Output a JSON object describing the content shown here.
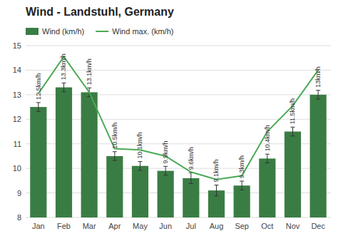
{
  "chart_data": {
    "type": "bar",
    "title": "Wind - Landstuhl, Germany",
    "categories": [
      "Jan",
      "Feb",
      "Mar",
      "Apr",
      "May",
      "Jun",
      "Jul",
      "Aug",
      "Sep",
      "Oct",
      "Nov",
      "Dec"
    ],
    "series": [
      {
        "name": "Wind (km/h)",
        "type": "bar",
        "color": "#3a7d44",
        "values": [
          12.5,
          13.3,
          13.1,
          10.5,
          10.1,
          9.9,
          9.6,
          9.1,
          9.3,
          10.4,
          11.5,
          13.0
        ],
        "errors": [
          0.18,
          0.18,
          0.18,
          0.18,
          0.18,
          0.18,
          0.22,
          0.22,
          0.18,
          0.18,
          0.18,
          0.18
        ],
        "data_labels": true,
        "value_labels": [
          "12.5km/h",
          "13.3km/h",
          "13.1km/h",
          "10.5km/h",
          "10.1km/h",
          "9.9km/h",
          "9.6km/h",
          "9.1km/h",
          "9.3km/h",
          "10.4km/h",
          "11.5km/h",
          "13km/h"
        ]
      },
      {
        "name": "Wind max. (km/h)",
        "type": "line",
        "color": "#4aaa55",
        "values": [
          13.05,
          14.55,
          13.1,
          10.8,
          10.75,
          10.5,
          9.85,
          9.55,
          9.7,
          11.5,
          12.55,
          14.0
        ]
      }
    ],
    "ylim": [
      8,
      15
    ],
    "yticks": [
      8,
      9,
      10,
      11,
      12,
      13,
      14,
      15
    ],
    "grid": true,
    "legend": "upper left"
  }
}
